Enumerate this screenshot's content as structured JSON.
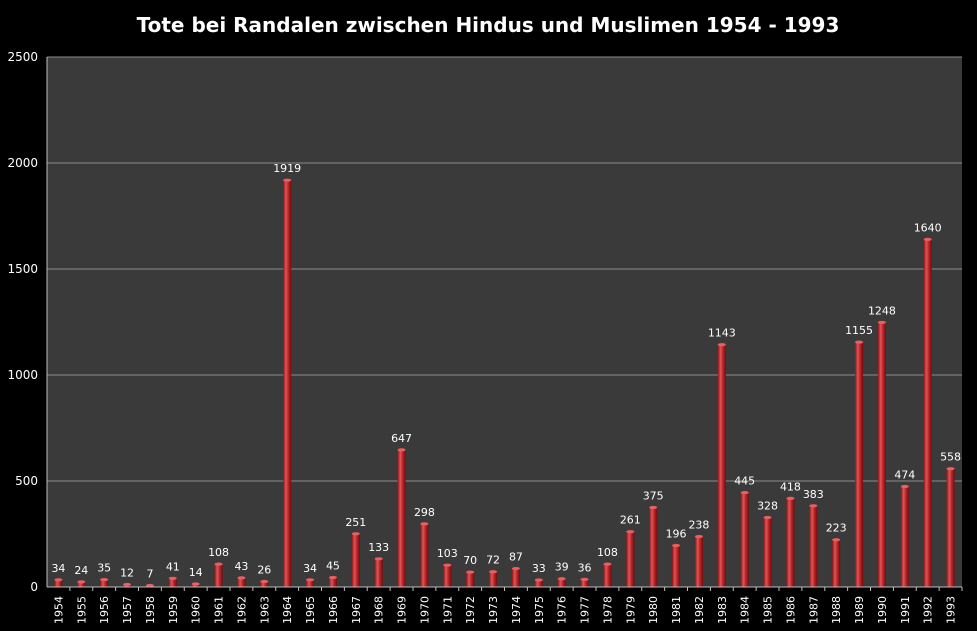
{
  "chart_data": {
    "type": "bar",
    "title": "Tote bei Randalen zwischen Hindus und Muslimen 1954 - 1993",
    "xlabel": "",
    "ylabel": "",
    "ylim": [
      0,
      2500
    ],
    "y_ticks": [
      "0",
      "500",
      "1000",
      "1500",
      "2000",
      "2500"
    ],
    "grid": true,
    "legend": "none",
    "colors": {
      "background": "#000000",
      "plot_area": "#3a3a3a",
      "gridline": "#8c8c8c",
      "bar": "#c0282a",
      "bar_light": "#e86062",
      "bar_dark": "#6e0c0e",
      "text": "#ffffff"
    },
    "categories": [
      "1954",
      "1955",
      "1956",
      "1957",
      "1958",
      "1959",
      "1960",
      "1961",
      "1962",
      "1963",
      "1964",
      "1965",
      "1966",
      "1967",
      "1968",
      "1969",
      "1970",
      "1971",
      "1972",
      "1973",
      "1974",
      "1975",
      "1976",
      "1977",
      "1978",
      "1979",
      "1980",
      "1981",
      "1982",
      "1983",
      "1984",
      "1985",
      "1986",
      "1987",
      "1988",
      "1989",
      "1990",
      "1991",
      "1992",
      "1993"
    ],
    "values": [
      34,
      24,
      35,
      12,
      7,
      41,
      14,
      108,
      43,
      26,
      1919,
      34,
      45,
      251,
      133,
      647,
      298,
      103,
      70,
      72,
      87,
      33,
      39,
      36,
      108,
      261,
      375,
      196,
      238,
      1143,
      445,
      328,
      418,
      383,
      223,
      1155,
      1248,
      474,
      1640,
      558
    ]
  }
}
